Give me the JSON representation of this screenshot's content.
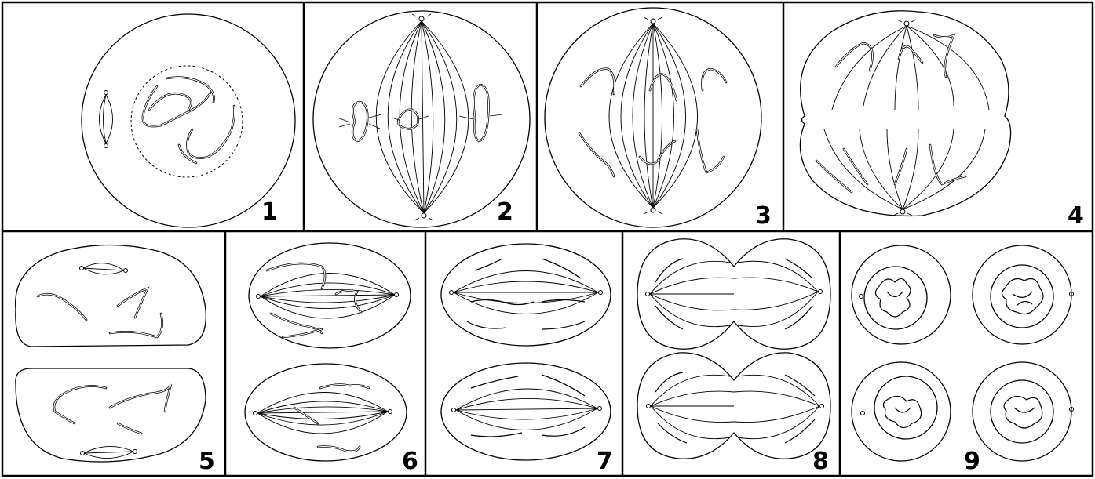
{
  "panels": [
    {
      "id": 1,
      "label": "1"
    },
    {
      "id": 2,
      "label": "2"
    },
    {
      "id": 3,
      "label": "3"
    },
    {
      "id": 4,
      "label": "4"
    },
    {
      "id": 5,
      "label": "5"
    },
    {
      "id": 6,
      "label": "6"
    },
    {
      "id": 7,
      "label": "7"
    },
    {
      "id": 8,
      "label": "8"
    },
    {
      "id": 9,
      "label": "9"
    }
  ],
  "colors": {
    "ink": "#000000",
    "paper": "#ffffff"
  }
}
